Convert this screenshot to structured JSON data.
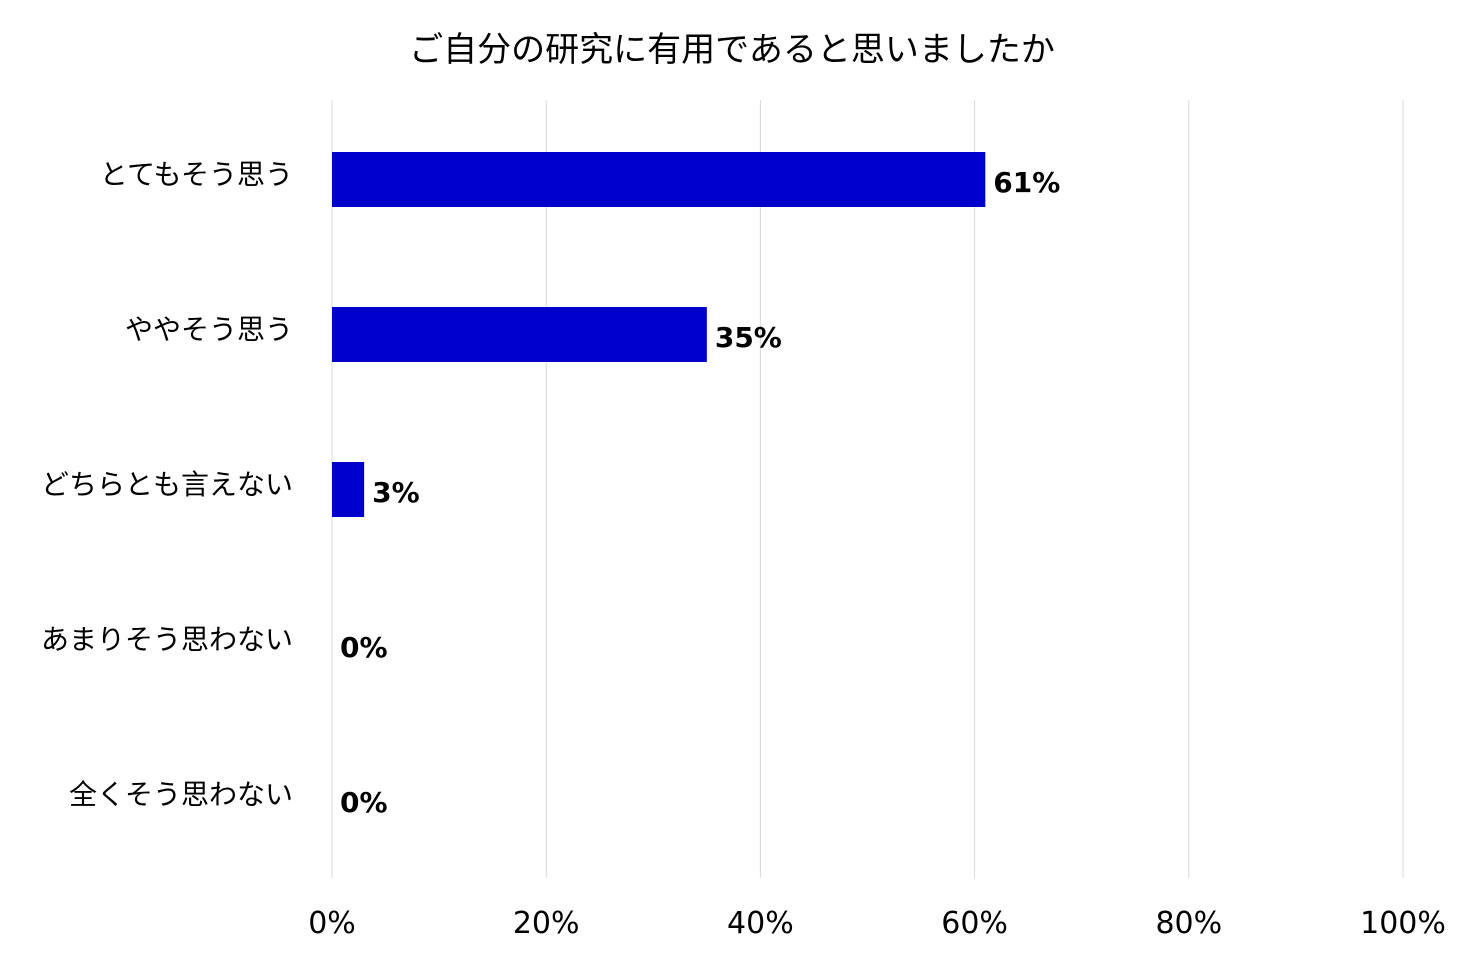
{
  "chart_data": {
    "type": "bar",
    "orientation": "horizontal",
    "title": "ご自分の研究に有用であると思いましたか",
    "categories": [
      "とてもそう思う",
      "ややそう思う",
      "どちらとも言えない",
      "あまりそう思わない",
      "全くそう思わない"
    ],
    "values": [
      61,
      35,
      3,
      0,
      0
    ],
    "data_labels": [
      "61%",
      "35%",
      "3%",
      "0%",
      "0%"
    ],
    "xlim": [
      0,
      100
    ],
    "x_ticks": [
      "0%",
      "20%",
      "40%",
      "60%",
      "80%",
      "100%"
    ],
    "xlabel": "",
    "ylabel": "",
    "grid": true,
    "bar_color": "#0000CC",
    "gridline_color": "#D9D9D9"
  }
}
